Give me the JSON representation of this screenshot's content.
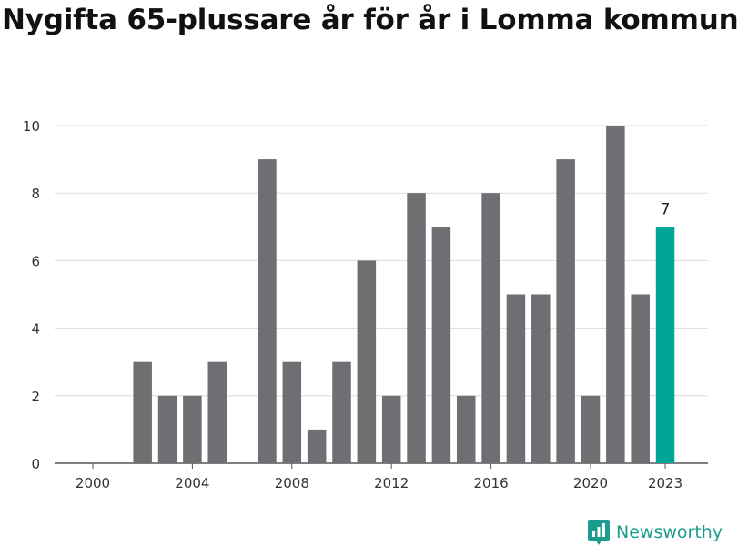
{
  "title": "Nygifta 65-plussare år för år i Lomma kommun",
  "brand": {
    "name": "Newsworthy",
    "color": "#1c9c8c"
  },
  "chart_data": {
    "type": "bar",
    "title": "Nygifta 65-plussare år för år i Lomma kommun",
    "xlabel": "",
    "ylabel": "",
    "categories": [
      "2000",
      "2001",
      "2002",
      "2003",
      "2004",
      "2005",
      "2006",
      "2007",
      "2008",
      "2009",
      "2010",
      "2011",
      "2012",
      "2013",
      "2014",
      "2015",
      "2016",
      "2017",
      "2018",
      "2019",
      "2020",
      "2021",
      "2022",
      "2023"
    ],
    "values": [
      0,
      0,
      3,
      2,
      2,
      3,
      0,
      9,
      3,
      1,
      3,
      6,
      2,
      8,
      7,
      2,
      8,
      5,
      5,
      9,
      2,
      10,
      5,
      7
    ],
    "x_tick_labels": [
      "2000",
      "2004",
      "2008",
      "2012",
      "2016",
      "2020",
      "2023"
    ],
    "y_ticks": [
      "0",
      "2",
      "4",
      "6",
      "8",
      "10"
    ],
    "ylim": [
      0,
      10
    ],
    "grid": true,
    "bar_color": "#6e6e73",
    "highlight": {
      "category": "2023",
      "color": "#00a499",
      "label": "7"
    }
  }
}
